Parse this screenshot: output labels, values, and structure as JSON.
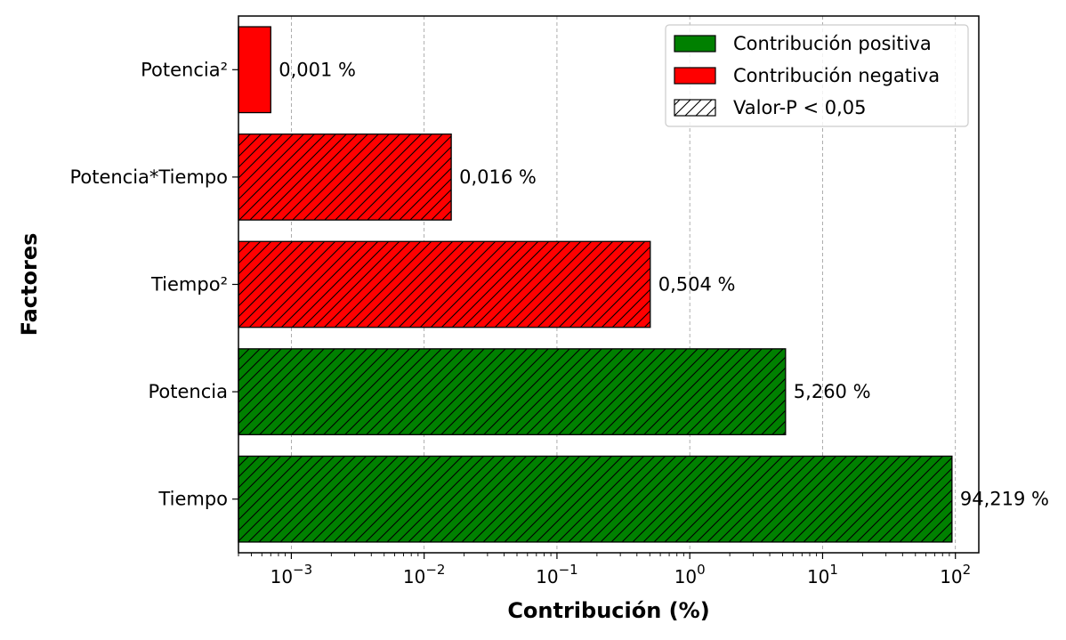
{
  "chart_data": {
    "type": "bar",
    "orientation": "horizontal",
    "x_scale": "log",
    "xlim": [
      0.0004,
      150
    ],
    "xlabel": "Contribución (%)",
    "ylabel": "Factores",
    "x_ticks": [
      0.001,
      0.01,
      0.1,
      1,
      10,
      100
    ],
    "x_tick_labels": [
      {
        "base": "10",
        "exp": "−3"
      },
      {
        "base": "10",
        "exp": "−2"
      },
      {
        "base": "10",
        "exp": "−1"
      },
      {
        "base": "10",
        "exp": "0"
      },
      {
        "base": "10",
        "exp": "1"
      },
      {
        "base": "10",
        "exp": "2"
      }
    ],
    "grid": "vertical dashed",
    "legend_position": "top-right",
    "categories": [
      "Tiempo",
      "Potencia",
      "Tiempo²",
      "Potencia*Tiempo",
      "Potencia²"
    ],
    "values": [
      94.219,
      5.26,
      0.504,
      0.016,
      0.0007
    ],
    "labels": [
      "94,219 %",
      "5,260 %",
      "0,504 %",
      "0,016 %",
      "0,001 %"
    ],
    "effect": [
      "positive",
      "positive",
      "negative",
      "negative",
      "negative"
    ],
    "significant": [
      true,
      true,
      true,
      true,
      false
    ],
    "colors": {
      "positive": "#008000",
      "negative": "#ff0000",
      "edge": "#000000"
    },
    "legend": [
      {
        "key": "positive",
        "label": "Contribución positiva"
      },
      {
        "key": "negative",
        "label": "Contribución negativa"
      },
      {
        "key": "hatch",
        "label": "Valor-P < 0,05"
      }
    ]
  }
}
